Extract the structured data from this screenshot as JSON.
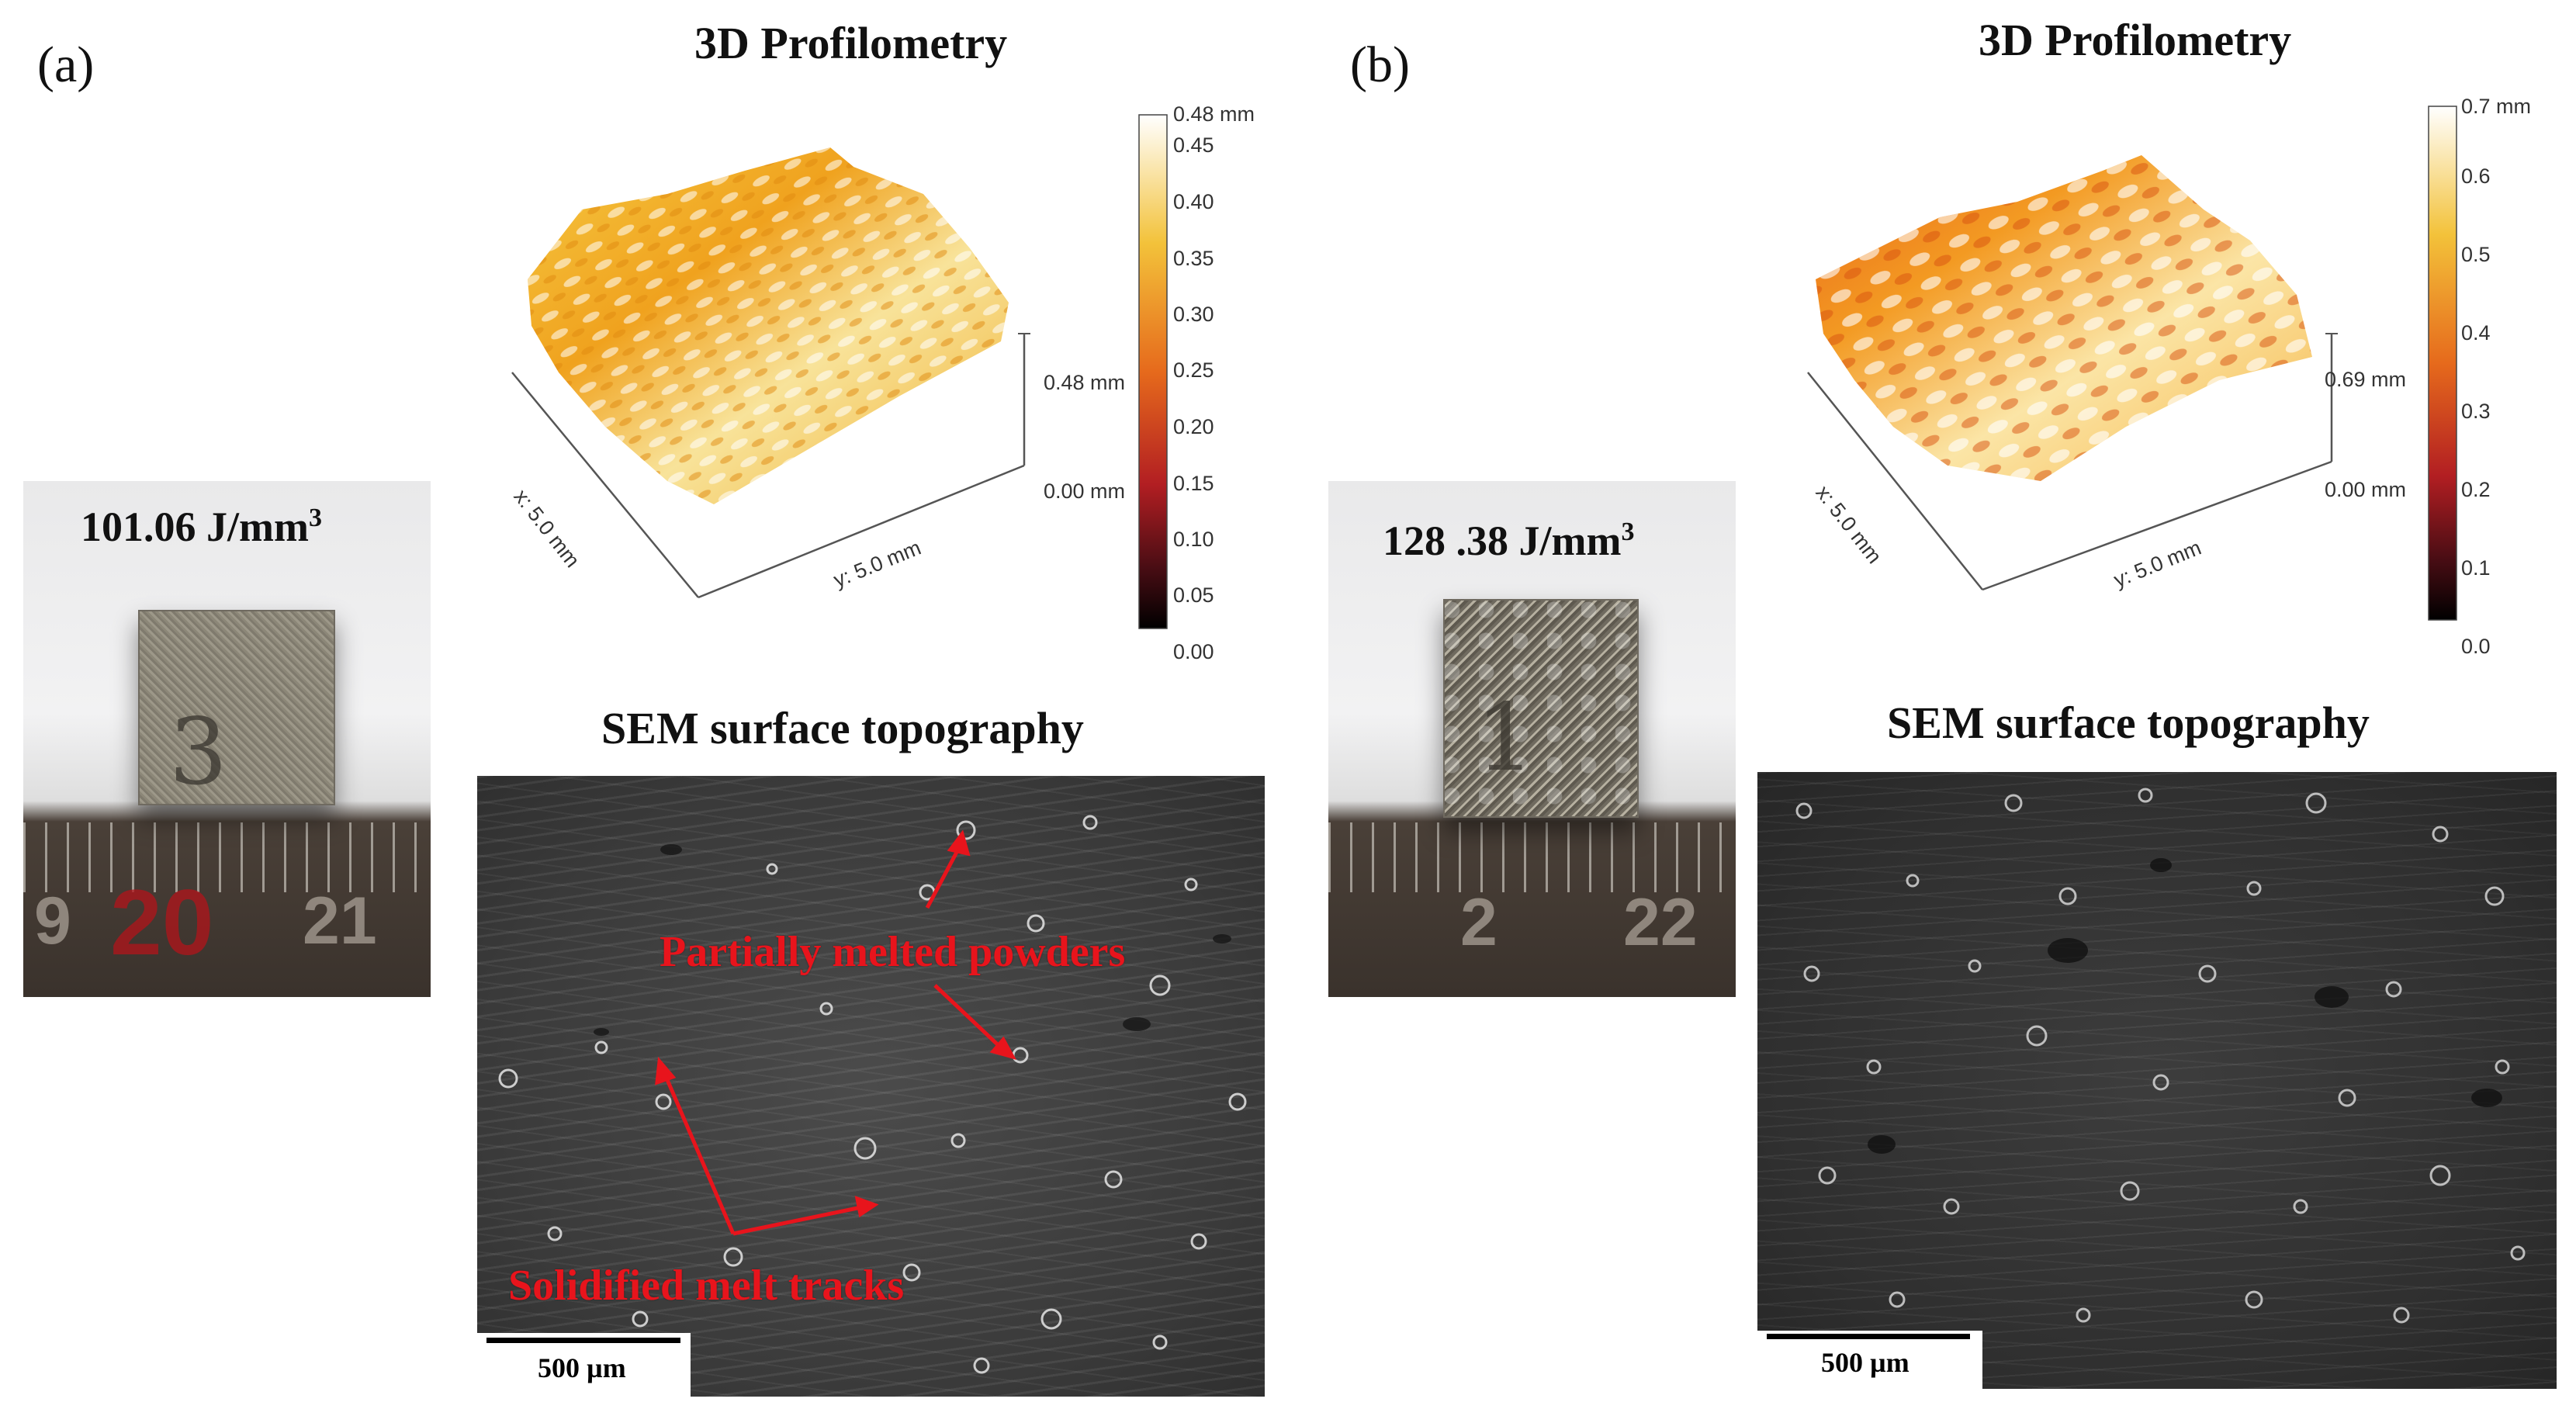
{
  "panels": [
    {
      "letter": "(a)",
      "profilometry_title": "3D Profilometry",
      "sem_title": "SEM surface topography",
      "energy_density_value": "101.06 J/mm",
      "energy_density_exp": "3",
      "sample_number": "3",
      "ruler_numbers": [
        "9",
        "20",
        "21"
      ],
      "colorbar": {
        "max_label": "0.48 mm",
        "ticks": [
          "0.45",
          "0.40",
          "0.35",
          "0.30",
          "0.25",
          "0.20",
          "0.15",
          "0.10",
          "0.05",
          "0.00"
        ]
      },
      "height_scale": {
        "top": "0.48 mm",
        "bottom": "0.00 mm"
      },
      "axes": {
        "x": "x: 5.0 mm",
        "y": "y: 5.0 mm"
      },
      "scale_bar": "500 µm",
      "annotations": [
        "Partially melted powders",
        "Solidified melt tracks"
      ]
    },
    {
      "letter": "(b)",
      "profilometry_title": "3D Profilometry",
      "sem_title": "SEM surface topography",
      "energy_density_value": "128 .38 J/mm",
      "energy_density_exp": "3",
      "sample_number": "1",
      "ruler_numbers": [
        "2",
        "22"
      ],
      "colorbar": {
        "max_label": "0.7 mm",
        "ticks": [
          "0.6",
          "0.5",
          "0.4",
          "0.3",
          "0.2",
          "0.1",
          "0.0"
        ]
      },
      "height_scale": {
        "top": "0.69 mm",
        "bottom": "0.00 mm"
      },
      "axes": {
        "x": "x: 5.0 mm",
        "y": "y: 5.0 mm"
      },
      "scale_bar": "500 µm",
      "annotations": []
    }
  ],
  "colors": {
    "annotation_red": "#e8141c",
    "surface_orange": "#f0a21e",
    "surface_yellow": "#f5c842"
  }
}
